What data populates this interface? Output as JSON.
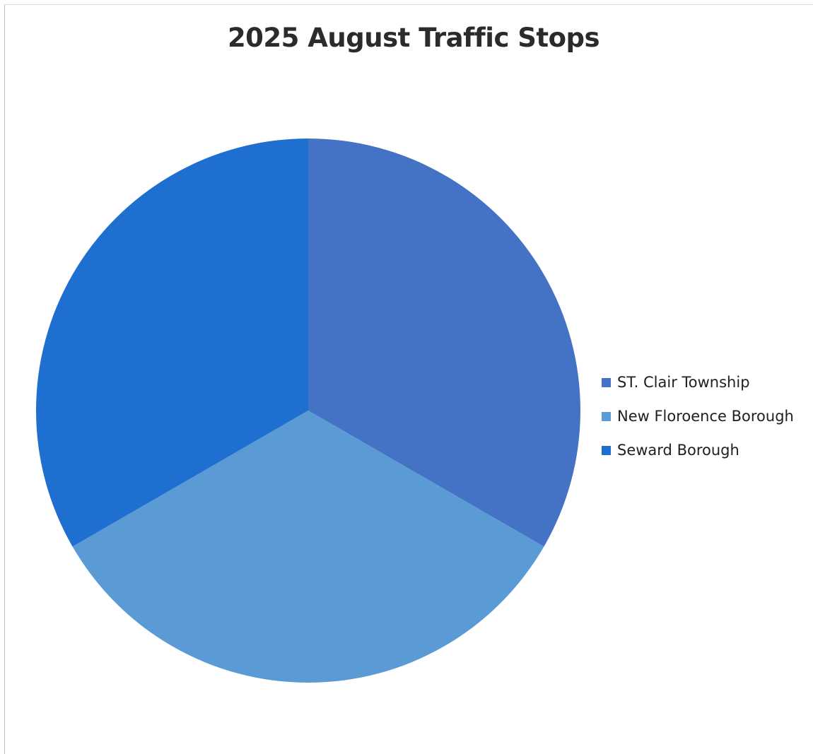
{
  "chart_data": {
    "type": "pie",
    "title": "2025 August Traffic Stops",
    "categories": [
      "ST. Clair Township",
      "New Floroence Borough",
      "Seward Borough"
    ],
    "values": [
      1,
      1,
      1
    ],
    "colors": [
      "#4472c4",
      "#5b9bd5",
      "#1f6fd1"
    ],
    "legend_position": "right",
    "start_angle_deg": 0,
    "direction": "clockwise"
  }
}
